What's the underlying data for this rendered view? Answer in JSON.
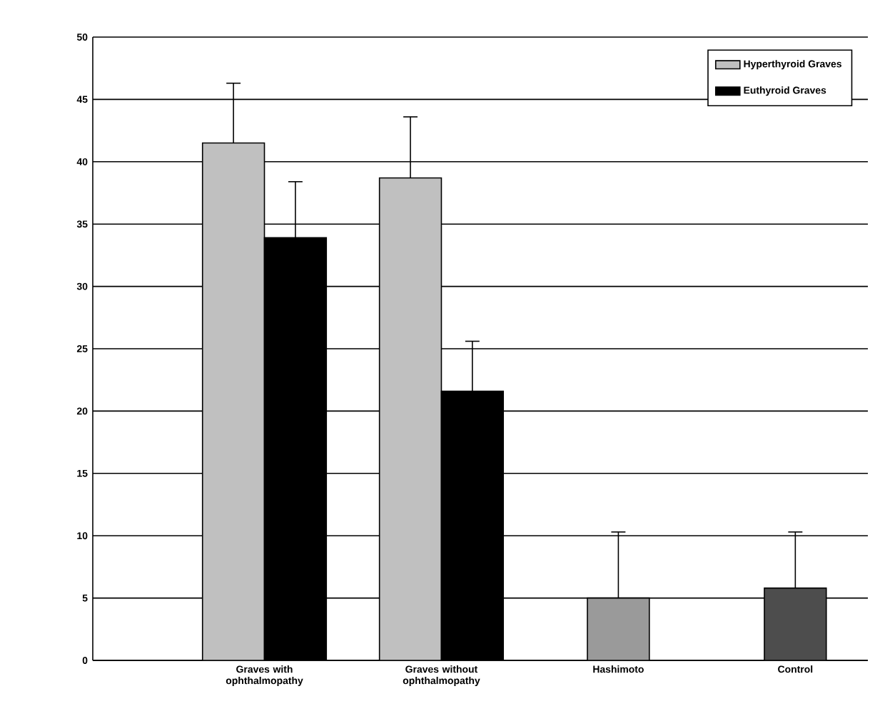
{
  "chart_data": {
    "type": "bar",
    "categories": [
      "Graves with ophthalmopathy",
      "Graves without ophthalmopathy",
      "Hashimoto",
      "Control"
    ],
    "series": [
      {
        "name": "Hyperthyroid Graves",
        "color": "#c0c0c0",
        "values": [
          41.5,
          38.7,
          null,
          null
        ],
        "errors": [
          [
            41.5,
            46.3
          ],
          [
            38.7,
            43.6
          ],
          null,
          null
        ]
      },
      {
        "name": "Euthyroid Graves",
        "color": "#000000",
        "values": [
          33.9,
          21.6,
          null,
          null
        ],
        "errors": [
          [
            33.9,
            38.4
          ],
          [
            21.6,
            25.6
          ],
          null,
          null
        ]
      },
      {
        "colors": [
          null,
          null,
          "#9a9a9a",
          "#4d4d4d"
        ],
        "values": [
          null,
          null,
          5.0,
          5.8
        ],
        "errors": [
          null,
          null,
          [
            5.0,
            10.3
          ],
          [
            5.8,
            10.3
          ]
        ]
      }
    ],
    "ylim": [
      0,
      50
    ],
    "yticks": [
      0,
      5,
      10,
      15,
      20,
      25,
      30,
      35,
      40,
      45,
      50
    ],
    "grid": "y",
    "legend": "top right"
  }
}
